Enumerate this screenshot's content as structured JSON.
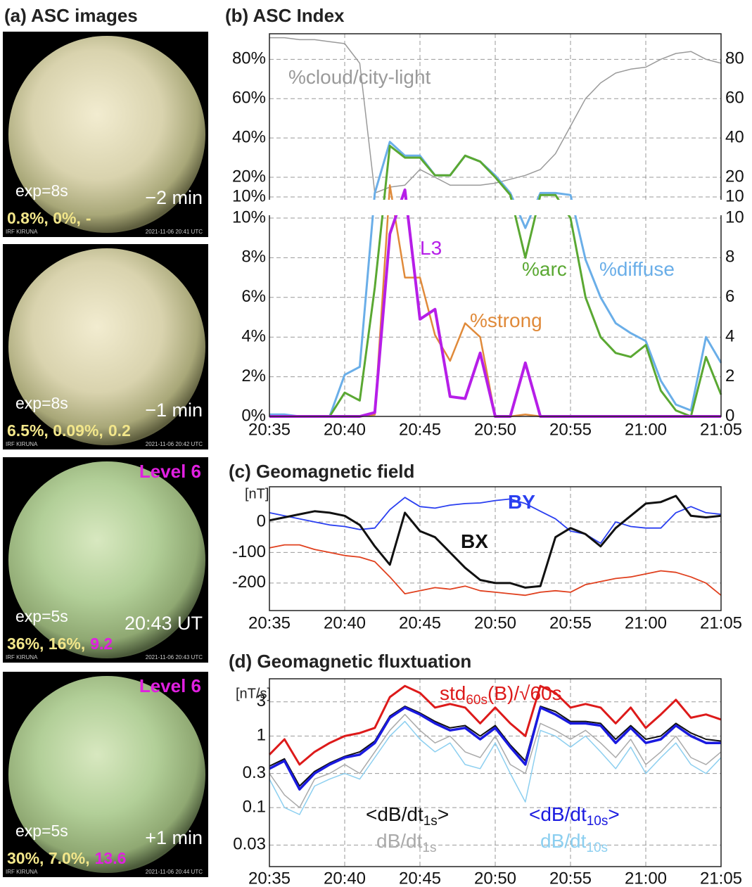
{
  "images_panel": {
    "title": "(a) ASC images",
    "stats_color": "#f2e68a",
    "images": [
      {
        "exp": "exp=8s",
        "time": "−2 min",
        "stats": "0.8%, 0%,",
        "l3": "-",
        "l3_color": "#f2e68a",
        "station": "IRF KIRUNA",
        "stamp": "2021-11-06 20:41 UTC"
      },
      {
        "exp": "exp=8s",
        "time": "−1 min",
        "stats": "6.5%, 0.09%,",
        "l3": "0.2",
        "l3_color": "#f2e68a",
        "station": "IRF KIRUNA",
        "stamp": "2021-11-06 20:42 UTC"
      },
      {
        "exp": "exp=5s",
        "time": "20:43 UT",
        "stats": "36%, 16%,",
        "l3": "9.2",
        "l3_color": "#e020e0",
        "level": "Level 6",
        "station": "IRF KIRUNA",
        "stamp": "2021-11-06 20:43 UTC"
      },
      {
        "exp": "exp=5s",
        "time": "+1 min",
        "stats": "30%, 7.0%,",
        "l3": "13.6",
        "l3_color": "#e020e0",
        "level": "Level 6",
        "station": "IRF KIRUNA",
        "stamp": "2021-11-06 20:44 UTC"
      }
    ]
  },
  "chart_data": [
    {
      "type": "line",
      "title": "(b) ASC Index",
      "x": [
        "20:35",
        "20:36",
        "20:37",
        "20:38",
        "20:39",
        "20:40",
        "20:41",
        "20:42",
        "20:43",
        "20:44",
        "20:45",
        "20:46",
        "20:47",
        "20:48",
        "20:49",
        "20:50",
        "20:51",
        "20:52",
        "20:53",
        "20:54",
        "20:55",
        "20:56",
        "20:57",
        "20:58",
        "20:59",
        "21:00",
        "21:01",
        "21:02",
        "21:03",
        "21:04",
        "21:05"
      ],
      "xlim": [
        "20:35",
        "21:05"
      ],
      "xticks": [
        "20:35",
        "20:40",
        "20:45",
        "20:50",
        "20:55",
        "21:00",
        "21:05"
      ],
      "y_break": 10,
      "ylim": [
        0,
        93
      ],
      "yticks": [
        {
          "value": 0,
          "label": "0%"
        },
        {
          "value": 2,
          "label": "2%"
        },
        {
          "value": 4,
          "label": "4%"
        },
        {
          "value": 6,
          "label": "6%"
        },
        {
          "value": 8,
          "label": "8%"
        },
        {
          "value": 10,
          "label": "10%"
        }
      ],
      "yticks_upper": [
        {
          "value": 10,
          "label": "10%"
        },
        {
          "value": 20,
          "label": "20%"
        },
        {
          "value": 40,
          "label": "40%"
        },
        {
          "value": 60,
          "label": "60%"
        },
        {
          "value": 80,
          "label": "80%"
        }
      ],
      "y2lim": [
        0,
        93
      ],
      "y2ticks": [
        0,
        2,
        4,
        6,
        8,
        10
      ],
      "y2ticks_upper": [
        10,
        20,
        40,
        60,
        80
      ],
      "y2_color": "#c98bd9",
      "grid": true,
      "series": [
        {
          "name": "%cloud/city-light",
          "color": "#9a9a9a",
          "width": 1.5,
          "values": [
            91,
            91,
            90,
            90,
            89,
            88,
            78,
            12,
            15,
            16,
            24,
            20,
            16,
            16,
            16,
            17,
            19,
            21,
            24,
            32,
            46,
            60,
            68,
            73,
            75,
            76,
            80,
            83,
            84,
            80,
            78
          ]
        },
        {
          "name": "%diffuse",
          "color": "#6aaee8",
          "width": 3,
          "values": [
            0.1,
            0.1,
            0,
            0,
            0,
            2.1,
            2.5,
            12,
            38,
            31,
            31,
            21,
            21,
            31,
            28,
            21,
            12,
            9.5,
            12,
            12,
            11,
            7.9,
            6,
            4.7,
            4.2,
            3.8,
            1.8,
            0.6,
            0.3,
            4,
            2.7
          ]
        },
        {
          "name": "%arc",
          "color": "#5aa832",
          "width": 3,
          "values": [
            0,
            0,
            0,
            0,
            0,
            1.2,
            0.8,
            6.5,
            36,
            30,
            30,
            21,
            21,
            31,
            28,
            20,
            11,
            8,
            11,
            11,
            10,
            6,
            4,
            3.2,
            3,
            3.6,
            1.3,
            0.3,
            0,
            3,
            1.1
          ]
        },
        {
          "name": "%strong",
          "color": "#e08a3a",
          "width": 2.5,
          "values": [
            0,
            0,
            0,
            0,
            0,
            0,
            0,
            0.09,
            16,
            7,
            7,
            4.1,
            2.8,
            4.7,
            4,
            0,
            0,
            0.1,
            0,
            0,
            0,
            0,
            0,
            0,
            0,
            0,
            0,
            0,
            0,
            0,
            0
          ]
        },
        {
          "name": "L3",
          "color": "#b61ee8",
          "width": 4,
          "axis": "y2",
          "values": [
            0,
            0,
            0,
            0,
            0,
            0,
            0,
            0.2,
            9.2,
            13.6,
            4.9,
            5.4,
            1,
            0.9,
            3.2,
            0,
            0,
            2.7,
            0,
            0,
            0,
            0,
            0,
            0,
            0,
            0,
            0,
            0,
            0,
            0,
            0
          ]
        }
      ]
    },
    {
      "type": "line",
      "title": "(c) Geomagnetic field",
      "ylabel": "[nT]",
      "x": [
        "20:35",
        "20:36",
        "20:37",
        "20:38",
        "20:39",
        "20:40",
        "20:41",
        "20:42",
        "20:43",
        "20:44",
        "20:45",
        "20:46",
        "20:47",
        "20:48",
        "20:49",
        "20:50",
        "20:51",
        "20:52",
        "20:53",
        "20:54",
        "20:55",
        "20:56",
        "20:57",
        "20:58",
        "20:59",
        "21:00",
        "21:01",
        "21:02",
        "21:03",
        "21:04",
        "21:05"
      ],
      "xlim": [
        "20:35",
        "21:05"
      ],
      "xticks": [
        "20:35",
        "20:40",
        "20:45",
        "20:50",
        "20:55",
        "21:00",
        "21:05"
      ],
      "ylim": [
        -290,
        115
      ],
      "yticks": [
        -200,
        -100,
        0
      ],
      "grid": true,
      "series": [
        {
          "color": "#e0401e",
          "width": 1.8,
          "values": [
            -85,
            -75,
            -75,
            -90,
            -100,
            -110,
            -115,
            -130,
            -180,
            -235,
            -225,
            -215,
            -220,
            -210,
            -225,
            -230,
            -235,
            -240,
            -230,
            -225,
            -230,
            -205,
            -195,
            -185,
            -180,
            -170,
            -160,
            -165,
            -180,
            -200,
            -240
          ]
        },
        {
          "name": "BY",
          "color": "#2a3ff0",
          "width": 1.8,
          "values": [
            30,
            20,
            10,
            0,
            -10,
            -15,
            -25,
            -20,
            40,
            80,
            50,
            45,
            55,
            60,
            62,
            70,
            75,
            60,
            35,
            10,
            -30,
            -40,
            -70,
            0,
            -15,
            -20,
            -20,
            30,
            50,
            30,
            25
          ]
        },
        {
          "name": "BX",
          "color": "#111111",
          "width": 3,
          "values": [
            5,
            15,
            25,
            35,
            30,
            20,
            -10,
            -80,
            -140,
            30,
            -30,
            -50,
            -100,
            -150,
            -190,
            -200,
            -200,
            -215,
            -210,
            -50,
            -20,
            -40,
            -80,
            -20,
            20,
            60,
            65,
            85,
            20,
            15,
            20
          ]
        }
      ]
    },
    {
      "type": "line",
      "title": "(d) Geomagnetic fluxtuation",
      "ylabel": "[nT/s]",
      "x": [
        "20:35",
        "20:36",
        "20:37",
        "20:38",
        "20:39",
        "20:40",
        "20:41",
        "20:42",
        "20:43",
        "20:44",
        "20:45",
        "20:46",
        "20:47",
        "20:48",
        "20:49",
        "20:50",
        "20:51",
        "20:52",
        "20:53",
        "20:54",
        "20:55",
        "20:56",
        "20:57",
        "20:58",
        "20:59",
        "21:00",
        "21:01",
        "21:02",
        "21:03",
        "21:04",
        "21:05"
      ],
      "xlim": [
        "20:35",
        "21:05"
      ],
      "xticks": [
        "20:35",
        "20:40",
        "20:45",
        "20:50",
        "20:55",
        "21:00",
        "21:05"
      ],
      "log_y": true,
      "ylim": [
        0.015,
        6.3
      ],
      "yticks": [
        0.03,
        0.1,
        0.3,
        1,
        3
      ],
      "grid": true,
      "series": [
        {
          "name": "dB/dt1s",
          "color": "#aaaaaa",
          "width": 1.5,
          "values": [
            0.3,
            0.15,
            0.1,
            0.25,
            0.3,
            0.4,
            0.3,
            0.6,
            1.2,
            2,
            1.2,
            0.8,
            1,
            0.6,
            0.5,
            1,
            0.4,
            0.3,
            1.5,
            1.2,
            0.9,
            1.2,
            0.8,
            0.5,
            0.9,
            0.4,
            0.6,
            1,
            0.5,
            0.4,
            0.6
          ]
        },
        {
          "name": "dB/dt10s",
          "color": "#8ccff0",
          "width": 1.5,
          "values": [
            0.25,
            0.1,
            0.08,
            0.2,
            0.25,
            0.3,
            0.25,
            0.5,
            1,
            1.6,
            0.9,
            0.6,
            0.8,
            0.4,
            0.35,
            0.8,
            0.3,
            0.12,
            1.2,
            1,
            0.7,
            1,
            0.6,
            0.35,
            0.7,
            0.3,
            0.5,
            0.8,
            0.4,
            0.3,
            0.5
          ]
        },
        {
          "name": "std60s(B)/√60s",
          "color": "#dd1a1a",
          "width": 3,
          "values": [
            0.55,
            0.9,
            0.4,
            0.6,
            0.8,
            1,
            1.1,
            1.3,
            3.5,
            5,
            4,
            2.5,
            2.8,
            2.5,
            1.5,
            2.5,
            1.5,
            1,
            5,
            4,
            2.5,
            2.8,
            2.5,
            1.5,
            2.5,
            1.3,
            2,
            3.2,
            1.8,
            2,
            1.7
          ]
        },
        {
          "name": "<dB/dt1s>",
          "color": "#111111",
          "width": 2,
          "values": [
            0.38,
            0.48,
            0.2,
            0.32,
            0.42,
            0.52,
            0.6,
            0.85,
            1.9,
            2.6,
            2.1,
            1.6,
            1.3,
            1.4,
            1,
            1.4,
            0.75,
            0.45,
            2.6,
            2.2,
            1.6,
            1.6,
            1.5,
            0.9,
            1.4,
            0.9,
            1,
            1.5,
            1.1,
            0.9,
            0.85
          ]
        },
        {
          "name": "<dB/dt10s>",
          "color": "#1a1ae0",
          "width": 3.5,
          "values": [
            0.35,
            0.45,
            0.18,
            0.3,
            0.4,
            0.5,
            0.55,
            0.8,
            1.8,
            2.5,
            2,
            1.5,
            1.2,
            1.3,
            0.9,
            1.3,
            0.7,
            0.4,
            2.5,
            2,
            1.5,
            1.5,
            1.4,
            0.8,
            1.3,
            0.8,
            0.9,
            1.4,
            1,
            0.8,
            0.8
          ]
        }
      ]
    }
  ]
}
